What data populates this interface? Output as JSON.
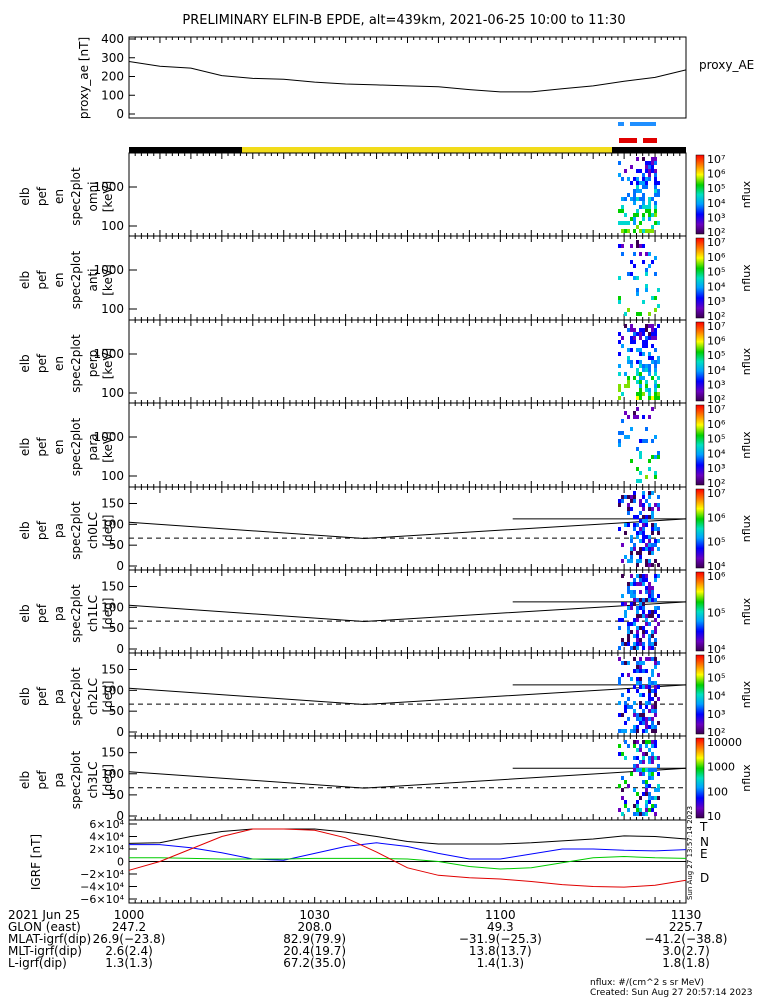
{
  "title": "PRELIMINARY ELFIN-B EPDE, alt=439km, 2021-06-25 10:00 to 11:30",
  "colors": {
    "night_bar": "#000000",
    "day_bar": "#f2dc1a",
    "blue_marker": "#1f8fff",
    "red_marker": "#e00000",
    "n_line": "#0000ff",
    "e_line": "#00cc00",
    "d_line": "#e00000",
    "t_line": "#000000"
  },
  "chart_data": [
    {
      "type": "line",
      "name": "proxy_ae",
      "ylabel": "proxy_ae [nT]",
      "yticks": [
        "400",
        "300",
        "200",
        "100",
        "0"
      ],
      "ylim": [
        0,
        400
      ],
      "legend": "proxy_AE",
      "x_min": [
        0,
        5,
        10,
        15,
        20,
        25,
        30,
        35,
        40,
        45,
        50,
        55,
        60,
        65,
        70,
        75,
        80,
        85,
        90
      ],
      "values": [
        280,
        255,
        245,
        205,
        190,
        185,
        170,
        160,
        155,
        150,
        145,
        130,
        118,
        118,
        135,
        150,
        175,
        195,
        235
      ]
    },
    {
      "type": "heatmap",
      "name": "omni",
      "ylabel": [
        "elb",
        "pef",
        "en",
        "spec2plot",
        "omni",
        "[keV]"
      ],
      "yticks": [
        "1000",
        "100"
      ],
      "colorbar": {
        "label": "nflux",
        "ticks": [
          "10⁷",
          "10⁶",
          "10⁵",
          "10⁴",
          "10³",
          "10²"
        ]
      }
    },
    {
      "type": "heatmap",
      "name": "anti",
      "ylabel": [
        "elb",
        "pef",
        "en",
        "spec2plot",
        "anti",
        "[keV]"
      ],
      "yticks": [
        "1000",
        "100"
      ],
      "colorbar": {
        "label": "nflux",
        "ticks": [
          "10⁷",
          "10⁶",
          "10⁵",
          "10⁴",
          "10³",
          "10²"
        ]
      }
    },
    {
      "type": "heatmap",
      "name": "perp",
      "ylabel": [
        "elb",
        "pef",
        "en",
        "spec2plot",
        "perp",
        "[keV]"
      ],
      "yticks": [
        "1000",
        "100"
      ],
      "colorbar": {
        "label": "nflux",
        "ticks": [
          "10⁷",
          "10⁶",
          "10⁵",
          "10⁴",
          "10³",
          "10²"
        ]
      }
    },
    {
      "type": "heatmap",
      "name": "para",
      "ylabel": [
        "elb",
        "pef",
        "en",
        "spec2plot",
        "para",
        "[keV]"
      ],
      "yticks": [
        "1000",
        "100"
      ],
      "colorbar": {
        "label": "nflux",
        "ticks": [
          "10⁷",
          "10⁶",
          "10⁵",
          "10⁴",
          "10³",
          "10²"
        ]
      }
    },
    {
      "type": "heatmap",
      "name": "ch0LC",
      "ylabel": [
        "elb",
        "pef",
        "pa",
        "spec2plot",
        "ch0LC",
        "[deg]"
      ],
      "yticks": [
        "150",
        "100",
        "50",
        "0"
      ],
      "ylim": [
        0,
        180
      ],
      "colorbar": {
        "label": "nflux",
        "ticks": [
          "10⁷",
          "10⁶",
          "10⁵",
          "10⁴"
        ]
      }
    },
    {
      "type": "heatmap",
      "name": "ch1LC",
      "ylabel": [
        "elb",
        "pef",
        "pa",
        "spec2plot",
        "ch1LC",
        "[deg]"
      ],
      "yticks": [
        "150",
        "100",
        "50",
        "0"
      ],
      "ylim": [
        0,
        180
      ],
      "colorbar": {
        "label": "nflux",
        "ticks": [
          "10⁶",
          "10⁵",
          "10⁴"
        ]
      }
    },
    {
      "type": "heatmap",
      "name": "ch2LC",
      "ylabel": [
        "elb",
        "pef",
        "pa",
        "spec2plot",
        "ch2LC",
        "[deg]"
      ],
      "yticks": [
        "150",
        "100",
        "50",
        "0"
      ],
      "ylim": [
        0,
        180
      ],
      "colorbar": {
        "label": "nflux",
        "ticks": [
          "10⁶",
          "10⁵",
          "10⁴",
          "10³",
          "10²"
        ]
      }
    },
    {
      "type": "heatmap",
      "name": "ch3LC",
      "ylabel": [
        "elb",
        "pef",
        "pa",
        "spec2plot",
        "ch3LC",
        "[deg]"
      ],
      "yticks": [
        "150",
        "100",
        "50",
        "0"
      ],
      "ylim": [
        0,
        180
      ],
      "colorbar": {
        "label": "nflux",
        "ticks": [
          "10000",
          "1000",
          "100",
          "10"
        ]
      }
    },
    {
      "type": "line",
      "name": "IGRF",
      "ylabel": "IGRF [nT]",
      "yticks": [
        "6×10⁴",
        "4×10⁴",
        "2×10⁴",
        "0",
        "−2×10⁴",
        "−4×10⁴",
        "−6×10⁴"
      ],
      "ylim": [
        -60000,
        60000
      ],
      "x_min": [
        0,
        5,
        10,
        15,
        20,
        25,
        30,
        35,
        40,
        45,
        50,
        55,
        60,
        65,
        70,
        75,
        80,
        85,
        90
      ],
      "series": [
        {
          "name": "T",
          "values": [
            29000,
            30000,
            40000,
            48000,
            52000,
            52000,
            52000,
            47000,
            40000,
            32000,
            28000,
            28000,
            28000,
            30000,
            33000,
            36000,
            41000,
            40000,
            36000
          ]
        },
        {
          "name": "N",
          "values": [
            27000,
            27000,
            22000,
            14000,
            4000,
            2000,
            13000,
            24000,
            30000,
            24000,
            13000,
            4000,
            4000,
            12000,
            20000,
            20000,
            18000,
            17000,
            19000
          ]
        },
        {
          "name": "E",
          "values": [
            6000,
            6000,
            5000,
            4000,
            4000,
            4000,
            5000,
            5000,
            5000,
            4000,
            0,
            -8000,
            -12000,
            -10000,
            -2000,
            6000,
            8000,
            6000,
            5000
          ]
        },
        {
          "name": "D",
          "values": [
            -14000,
            0,
            20000,
            40000,
            52000,
            52000,
            50000,
            38000,
            15000,
            -10000,
            -22000,
            -26000,
            -28000,
            -32000,
            -37000,
            -40000,
            -41000,
            -38000,
            -30000
          ]
        }
      ]
    }
  ],
  "x_axis": {
    "ticks": [
      "1000",
      "1030",
      "1100",
      "1130"
    ]
  },
  "ephemeris": [
    {
      "label": "2021 Jun 25",
      "values": [
        "1000",
        "1030",
        "1100",
        "1130"
      ]
    },
    {
      "label": "GLON (east)",
      "values": [
        "247.2",
        "208.0",
        "49.3",
        "225.7"
      ]
    },
    {
      "label": "MLAT-igrf(dip)",
      "values": [
        "26.9(−23.8)",
        "82.9(79.9)",
        "−31.9(−25.3)",
        "−41.2(−38.8)"
      ]
    },
    {
      "label": "MLT-igrf(dip)",
      "values": [
        "2.6(2.4)",
        "20.4(19.7)",
        "13.8(13.7)",
        "3.0(2.7)"
      ]
    },
    {
      "label": "L-igrf(dip)",
      "values": [
        "1.3(1.3)",
        "67.2(35.0)",
        "1.4(1.3)",
        "1.8(1.8)"
      ]
    }
  ],
  "footer": {
    "units": "nflux: #/(cm^2 s sr MeV)",
    "created": "Created: Sun Aug 27 20:57:14 2023",
    "side_stamp": "Sun Aug 27 13:57:14 2023"
  }
}
